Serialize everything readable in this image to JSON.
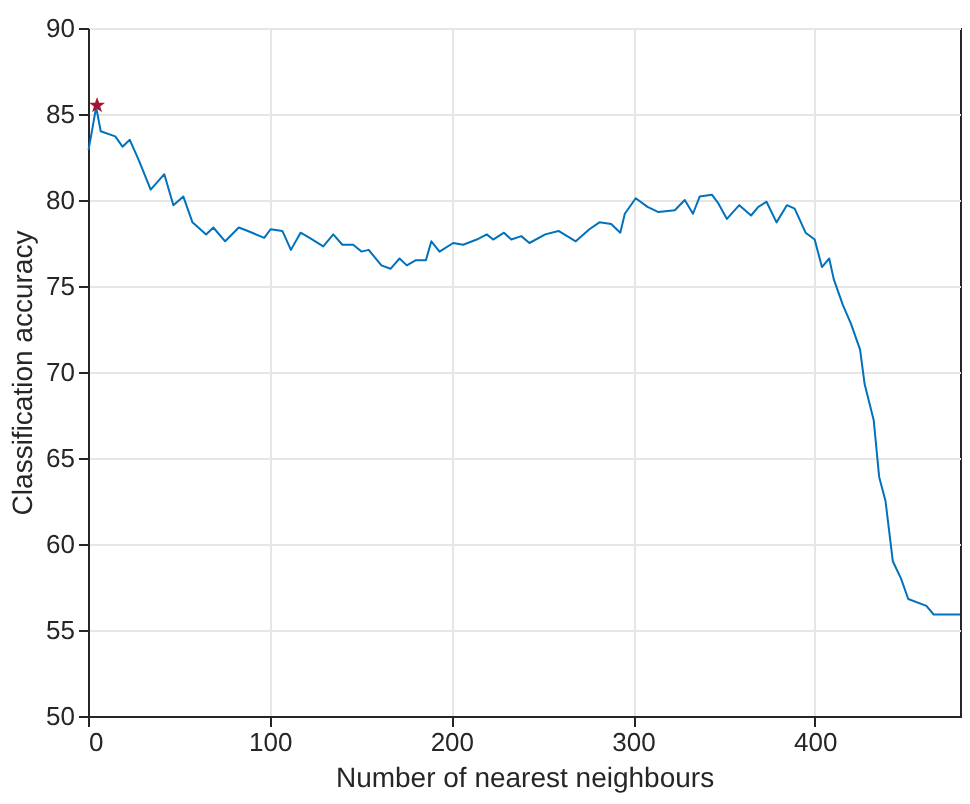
{
  "chart_data": {
    "type": "line",
    "xlabel": "Number of nearest neighbours",
    "ylabel": "Classification accuracy",
    "xlim": [
      0,
      480
    ],
    "ylim": [
      50,
      90
    ],
    "xticks": [
      0,
      100,
      200,
      300,
      400
    ],
    "yticks": [
      50,
      55,
      60,
      65,
      70,
      75,
      80,
      85,
      90
    ],
    "grid": true,
    "series": [
      {
        "type": "line",
        "color": "#0072bd",
        "marker": "none",
        "x": [
          0.3,
          4.5,
          7,
          15,
          19,
          23,
          28,
          34.5,
          42,
          47,
          52.5,
          57.5,
          65,
          69,
          75.5,
          83,
          88,
          97,
          100.5,
          107,
          111.7,
          117,
          122,
          129.5,
          135,
          140,
          146,
          150.5,
          154.5,
          161.5,
          166.5,
          171.5,
          175.5,
          180.5,
          186,
          189,
          193.5,
          201,
          206.5,
          214,
          219.5,
          223,
          229,
          233,
          238.5,
          243,
          251.7,
          259,
          268.5,
          276,
          281.5,
          288,
          293,
          295.5,
          301.5,
          308,
          314,
          323,
          328.5,
          333,
          336.7,
          343.5,
          347,
          351.7,
          358.5,
          365,
          369,
          373.5,
          379,
          384.7,
          389,
          395,
          400,
          404,
          408,
          410.5,
          415.5,
          420,
          425,
          427.5,
          432.5,
          435.5,
          439,
          443,
          447.5,
          451.5,
          461.5,
          465.5,
          480
        ],
        "values": [
          82.9,
          85.4,
          84.0,
          83.7,
          83.1,
          83.5,
          82.3,
          80.6,
          81.5,
          79.7,
          80.2,
          78.7,
          78.0,
          78.4,
          77.6,
          78.4,
          78.2,
          77.8,
          78.3,
          78.2,
          77.1,
          78.1,
          77.8,
          77.3,
          78.0,
          77.4,
          77.4,
          77.0,
          77.1,
          76.2,
          76.0,
          76.6,
          76.2,
          76.5,
          76.5,
          77.6,
          77.0,
          77.5,
          77.4,
          77.7,
          78.0,
          77.7,
          78.1,
          77.7,
          77.9,
          77.5,
          78.0,
          78.2,
          77.6,
          78.3,
          78.7,
          78.6,
          78.1,
          79.2,
          80.1,
          79.6,
          79.3,
          79.4,
          80.0,
          79.2,
          80.2,
          80.3,
          79.8,
          78.9,
          79.7,
          79.1,
          79.6,
          79.9,
          78.7,
          79.7,
          79.5,
          78.1,
          77.7,
          76.1,
          76.6,
          75.4,
          73.9,
          72.8,
          71.3,
          69.3,
          67.2,
          63.9,
          62.5,
          59.0,
          58.0,
          56.8,
          56.4,
          55.9,
          55.9
        ]
      },
      {
        "type": "scatter",
        "color": "#a2142f",
        "marker": "star",
        "x": [
          5
        ],
        "values": [
          85.5
        ]
      }
    ]
  }
}
